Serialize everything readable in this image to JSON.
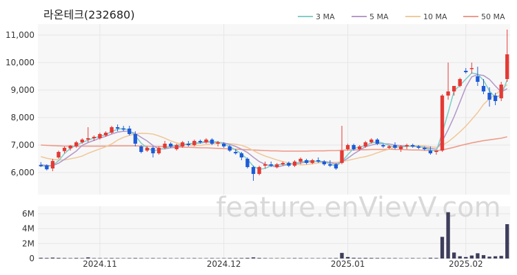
{
  "title": "라온테크(232680)",
  "watermark": "feature.enVievV.com",
  "colors": {
    "up": "#e53935",
    "down": "#1e5bd8",
    "volume": "#3d3d5c",
    "ma3": "#7fcfc7",
    "ma5": "#b49ac9",
    "ma10": "#f0c99a",
    "ma50": "#ef9a8a",
    "grid": "#e6e6e6",
    "plot_bg": "#f7f7f7"
  },
  "chart_data": [
    {
      "type": "candlestick",
      "title": "라온테크(232680)",
      "ylim": [
        5200,
        11400
      ],
      "y_ticks": [
        6000,
        7000,
        8000,
        9000,
        10000,
        11000
      ],
      "y_tick_labels": [
        "6,000",
        "7,000",
        "8,000",
        "9,000",
        "10,000",
        "11,000"
      ],
      "x_tick_labels": [
        {
          "label": "2024.11",
          "index": 10
        },
        {
          "label": "2024.12",
          "index": 31
        },
        {
          "label": "2025.01",
          "index": 52
        },
        {
          "label": "2025.02",
          "index": 72
        }
      ],
      "legend": [
        {
          "name": "3 MA",
          "color": "#7fcfc7"
        },
        {
          "name": "5 MA",
          "color": "#b49ac9"
        },
        {
          "name": "10 MA",
          "color": "#f0c99a"
        },
        {
          "name": "50 MA",
          "color": "#ef9a8a"
        }
      ],
      "ohlc": [
        [
          6280,
          6380,
          6200,
          6230
        ],
        [
          6260,
          6300,
          6080,
          6120
        ],
        [
          6150,
          6500,
          6050,
          6420
        ],
        [
          6550,
          6800,
          6500,
          6750
        ],
        [
          6780,
          6950,
          6700,
          6900
        ],
        [
          6880,
          7000,
          6800,
          6980
        ],
        [
          6950,
          7150,
          6900,
          7100
        ],
        [
          7100,
          7250,
          7050,
          7200
        ],
        [
          7200,
          7650,
          7100,
          7250
        ],
        [
          7250,
          7350,
          7150,
          7300
        ],
        [
          7250,
          7450,
          7200,
          7400
        ],
        [
          7350,
          7500,
          7300,
          7450
        ],
        [
          7450,
          7700,
          7400,
          7650
        ],
        [
          7650,
          7750,
          7500,
          7600
        ],
        [
          7600,
          7700,
          7500,
          7580
        ],
        [
          7600,
          7700,
          7350,
          7400
        ],
        [
          7400,
          7500,
          6950,
          7050
        ],
        [
          6950,
          7000,
          6700,
          6750
        ],
        [
          6800,
          6950,
          6750,
          6900
        ],
        [
          6900,
          6950,
          6550,
          6700
        ],
        [
          6700,
          6950,
          6650,
          6900
        ],
        [
          6900,
          7150,
          6850,
          7050
        ],
        [
          7050,
          7100,
          6900,
          6950
        ],
        [
          6850,
          7050,
          6800,
          7000
        ],
        [
          6950,
          7150,
          6900,
          7100
        ],
        [
          7050,
          7150,
          6950,
          7000
        ],
        [
          7000,
          7200,
          6950,
          7150
        ],
        [
          7150,
          7200,
          7050,
          7100
        ],
        [
          7100,
          7250,
          7050,
          7200
        ],
        [
          7200,
          7250,
          7000,
          7050
        ],
        [
          7050,
          7150,
          6950,
          7100
        ],
        [
          7050,
          7100,
          6900,
          6950
        ],
        [
          6950,
          7000,
          6750,
          6800
        ],
        [
          6750,
          6850,
          6650,
          6700
        ],
        [
          6700,
          6750,
          6450,
          6550
        ],
        [
          6500,
          6550,
          6150,
          6200
        ],
        [
          6200,
          6250,
          5700,
          5950
        ],
        [
          5950,
          6250,
          5900,
          6200
        ],
        [
          6250,
          6400,
          6150,
          6300
        ],
        [
          6300,
          6400,
          6200,
          6250
        ],
        [
          6200,
          6350,
          6150,
          6300
        ],
        [
          6300,
          6400,
          6250,
          6350
        ],
        [
          6350,
          6400,
          6200,
          6250
        ],
        [
          6250,
          6450,
          6200,
          6400
        ],
        [
          6400,
          6550,
          6300,
          6500
        ],
        [
          6450,
          6500,
          6300,
          6350
        ],
        [
          6350,
          6500,
          6300,
          6450
        ],
        [
          6450,
          6550,
          6350,
          6400
        ],
        [
          6400,
          6450,
          6250,
          6300
        ],
        [
          6300,
          6450,
          6200,
          6250
        ],
        [
          6300,
          6350,
          6100,
          6150
        ],
        [
          6350,
          7700,
          6300,
          6800
        ],
        [
          6850,
          7050,
          6800,
          7000
        ],
        [
          7000,
          7050,
          6800,
          6850
        ],
        [
          6850,
          7000,
          6800,
          6950
        ],
        [
          6950,
          7150,
          6900,
          7100
        ],
        [
          7100,
          7250,
          7050,
          7200
        ],
        [
          7200,
          7250,
          7000,
          7050
        ],
        [
          7000,
          7050,
          6900,
          6950
        ],
        [
          6900,
          7000,
          6850,
          6950
        ],
        [
          7000,
          7100,
          6850,
          6900
        ],
        [
          6850,
          7000,
          6750,
          6950
        ],
        [
          6950,
          7050,
          6850,
          7000
        ],
        [
          7000,
          7050,
          6900,
          6950
        ],
        [
          6950,
          7000,
          6850,
          6900
        ],
        [
          6900,
          6950,
          6800,
          6850
        ],
        [
          6800,
          6950,
          6650,
          6700
        ],
        [
          6750,
          6800,
          6650,
          6800
        ],
        [
          6800,
          8850,
          6750,
          8800
        ],
        [
          8800,
          10000,
          8650,
          8950
        ],
        [
          8950,
          9150,
          8800,
          9150
        ],
        [
          9150,
          9450,
          9100,
          9400
        ],
        [
          9700,
          9800,
          9600,
          9650
        ],
        [
          9800,
          10000,
          9600,
          9800
        ],
        [
          9500,
          9850,
          9150,
          9300
        ],
        [
          9150,
          9400,
          8850,
          8950
        ],
        [
          8900,
          9100,
          8400,
          8650
        ],
        [
          8800,
          8900,
          8450,
          8600
        ],
        [
          8700,
          9300,
          8600,
          9200
        ],
        [
          9400,
          11200,
          9300,
          10300
        ]
      ],
      "volume_ylim": [
        0,
        7000000
      ],
      "volume_ticks": [
        0,
        2000000,
        4000000,
        6000000
      ],
      "volume_tick_labels": [
        "0",
        "2M",
        "4M",
        "6M"
      ],
      "volume": [
        100000,
        80000,
        120000,
        90000,
        70000,
        60000,
        80000,
        60000,
        150000,
        60000,
        60000,
        50000,
        70000,
        60000,
        50000,
        60000,
        70000,
        60000,
        50000,
        60000,
        50000,
        60000,
        50000,
        50000,
        60000,
        50000,
        60000,
        50000,
        50000,
        60000,
        50000,
        50000,
        60000,
        60000,
        70000,
        90000,
        150000,
        80000,
        60000,
        50000,
        50000,
        50000,
        50000,
        60000,
        60000,
        50000,
        50000,
        50000,
        50000,
        60000,
        70000,
        750000,
        200000,
        100000,
        80000,
        90000,
        80000,
        70000,
        60000,
        60000,
        60000,
        50000,
        50000,
        60000,
        50000,
        50000,
        100000,
        80000,
        2900000,
        6200000,
        800000,
        300000,
        200000,
        400000,
        700000,
        450000,
        250000,
        300000,
        350000,
        4600000
      ],
      "ma": [
        {
          "name": "3 MA",
          "values": [
            6250,
            6220,
            6260,
            6430,
            6690,
            6880,
            6990,
            7090,
            7180,
            7250,
            7320,
            7380,
            7500,
            7570,
            7610,
            7530,
            7340,
            7070,
            6900,
            6780,
            6840,
            6880,
            6970,
            7000,
            7020,
            7040,
            7080,
            7080,
            7150,
            7120,
            7120,
            7030,
            6950,
            6820,
            6680,
            6480,
            6230,
            6120,
            6150,
            6250,
            6280,
            6300,
            6300,
            6330,
            6380,
            6420,
            6430,
            6400,
            6380,
            6320,
            6230,
            6400,
            6650,
            6880,
            6930,
            6980,
            7080,
            7120,
            7070,
            6980,
            6930,
            6930,
            6950,
            6970,
            6950,
            6900,
            6820,
            6790,
            7430,
            8180,
            8970,
            9170,
            9400,
            9620,
            9580,
            9350,
            8970,
            8730,
            8820,
            9370
          ]
        },
        {
          "name": "5 MA",
          "values": [
            6280,
            6260,
            6250,
            6340,
            6480,
            6630,
            6780,
            6990,
            7090,
            7170,
            7250,
            7320,
            7400,
            7470,
            7500,
            7500,
            7420,
            7280,
            7150,
            6980,
            6860,
            6860,
            6900,
            6920,
            7000,
            7040,
            7060,
            7070,
            7110,
            7100,
            7100,
            7080,
            7020,
            6950,
            6850,
            6730,
            6560,
            6400,
            6300,
            6240,
            6200,
            6250,
            6300,
            6320,
            6350,
            6380,
            6400,
            6410,
            6400,
            6370,
            6310,
            6390,
            6520,
            6680,
            6810,
            6940,
            7000,
            7050,
            7050,
            7040,
            7000,
            6980,
            6960,
            6950,
            6940,
            6920,
            6880,
            6850,
            7140,
            7560,
            8030,
            8560,
            9110,
            9480,
            9560,
            9530,
            9390,
            9150,
            8930,
            9050
          ]
        },
        {
          "name": "10 MA",
          "values": [
            6580,
            6520,
            6480,
            6460,
            6460,
            6500,
            6540,
            6600,
            6700,
            6780,
            6860,
            6940,
            7040,
            7180,
            7280,
            7350,
            7400,
            7430,
            7420,
            7400,
            7330,
            7250,
            7150,
            7080,
            7030,
            6990,
            6990,
            6990,
            7020,
            7040,
            7060,
            7060,
            7050,
            7030,
            6990,
            6910,
            6800,
            6690,
            6600,
            6530,
            6460,
            6400,
            6350,
            6310,
            6280,
            6290,
            6320,
            6350,
            6370,
            6370,
            6370,
            6400,
            6440,
            6490,
            6540,
            6580,
            6640,
            6720,
            6790,
            6850,
            6930,
            6960,
            6970,
            6980,
            6980,
            6970,
            6940,
            6920,
            6990,
            7120,
            7290,
            7480,
            7690,
            7930,
            8180,
            8480,
            8680,
            8840,
            9010,
            9200
          ]
        },
        {
          "name": "50 MA",
          "values": [
            7000,
            6990,
            6980,
            6970,
            6960,
            6960,
            6960,
            6960,
            6960,
            6960,
            6960,
            6960,
            6970,
            6970,
            6970,
            6970,
            6970,
            6960,
            6960,
            6950,
            6950,
            6940,
            6940,
            6930,
            6920,
            6920,
            6910,
            6900,
            6900,
            6890,
            6880,
            6870,
            6860,
            6850,
            6840,
            6830,
            6820,
            6810,
            6800,
            6790,
            6790,
            6780,
            6780,
            6780,
            6780,
            6780,
            6790,
            6790,
            6790,
            6800,
            6800,
            6810,
            6820,
            6820,
            6830,
            6830,
            6840,
            6840,
            6840,
            6850,
            6840,
            6840,
            6830,
            6820,
            6820,
            6810,
            6800,
            6800,
            6820,
            6870,
            6920,
            6980,
            7030,
            7080,
            7120,
            7160,
            7190,
            7220,
            7250,
            7300
          ]
        }
      ]
    }
  ]
}
